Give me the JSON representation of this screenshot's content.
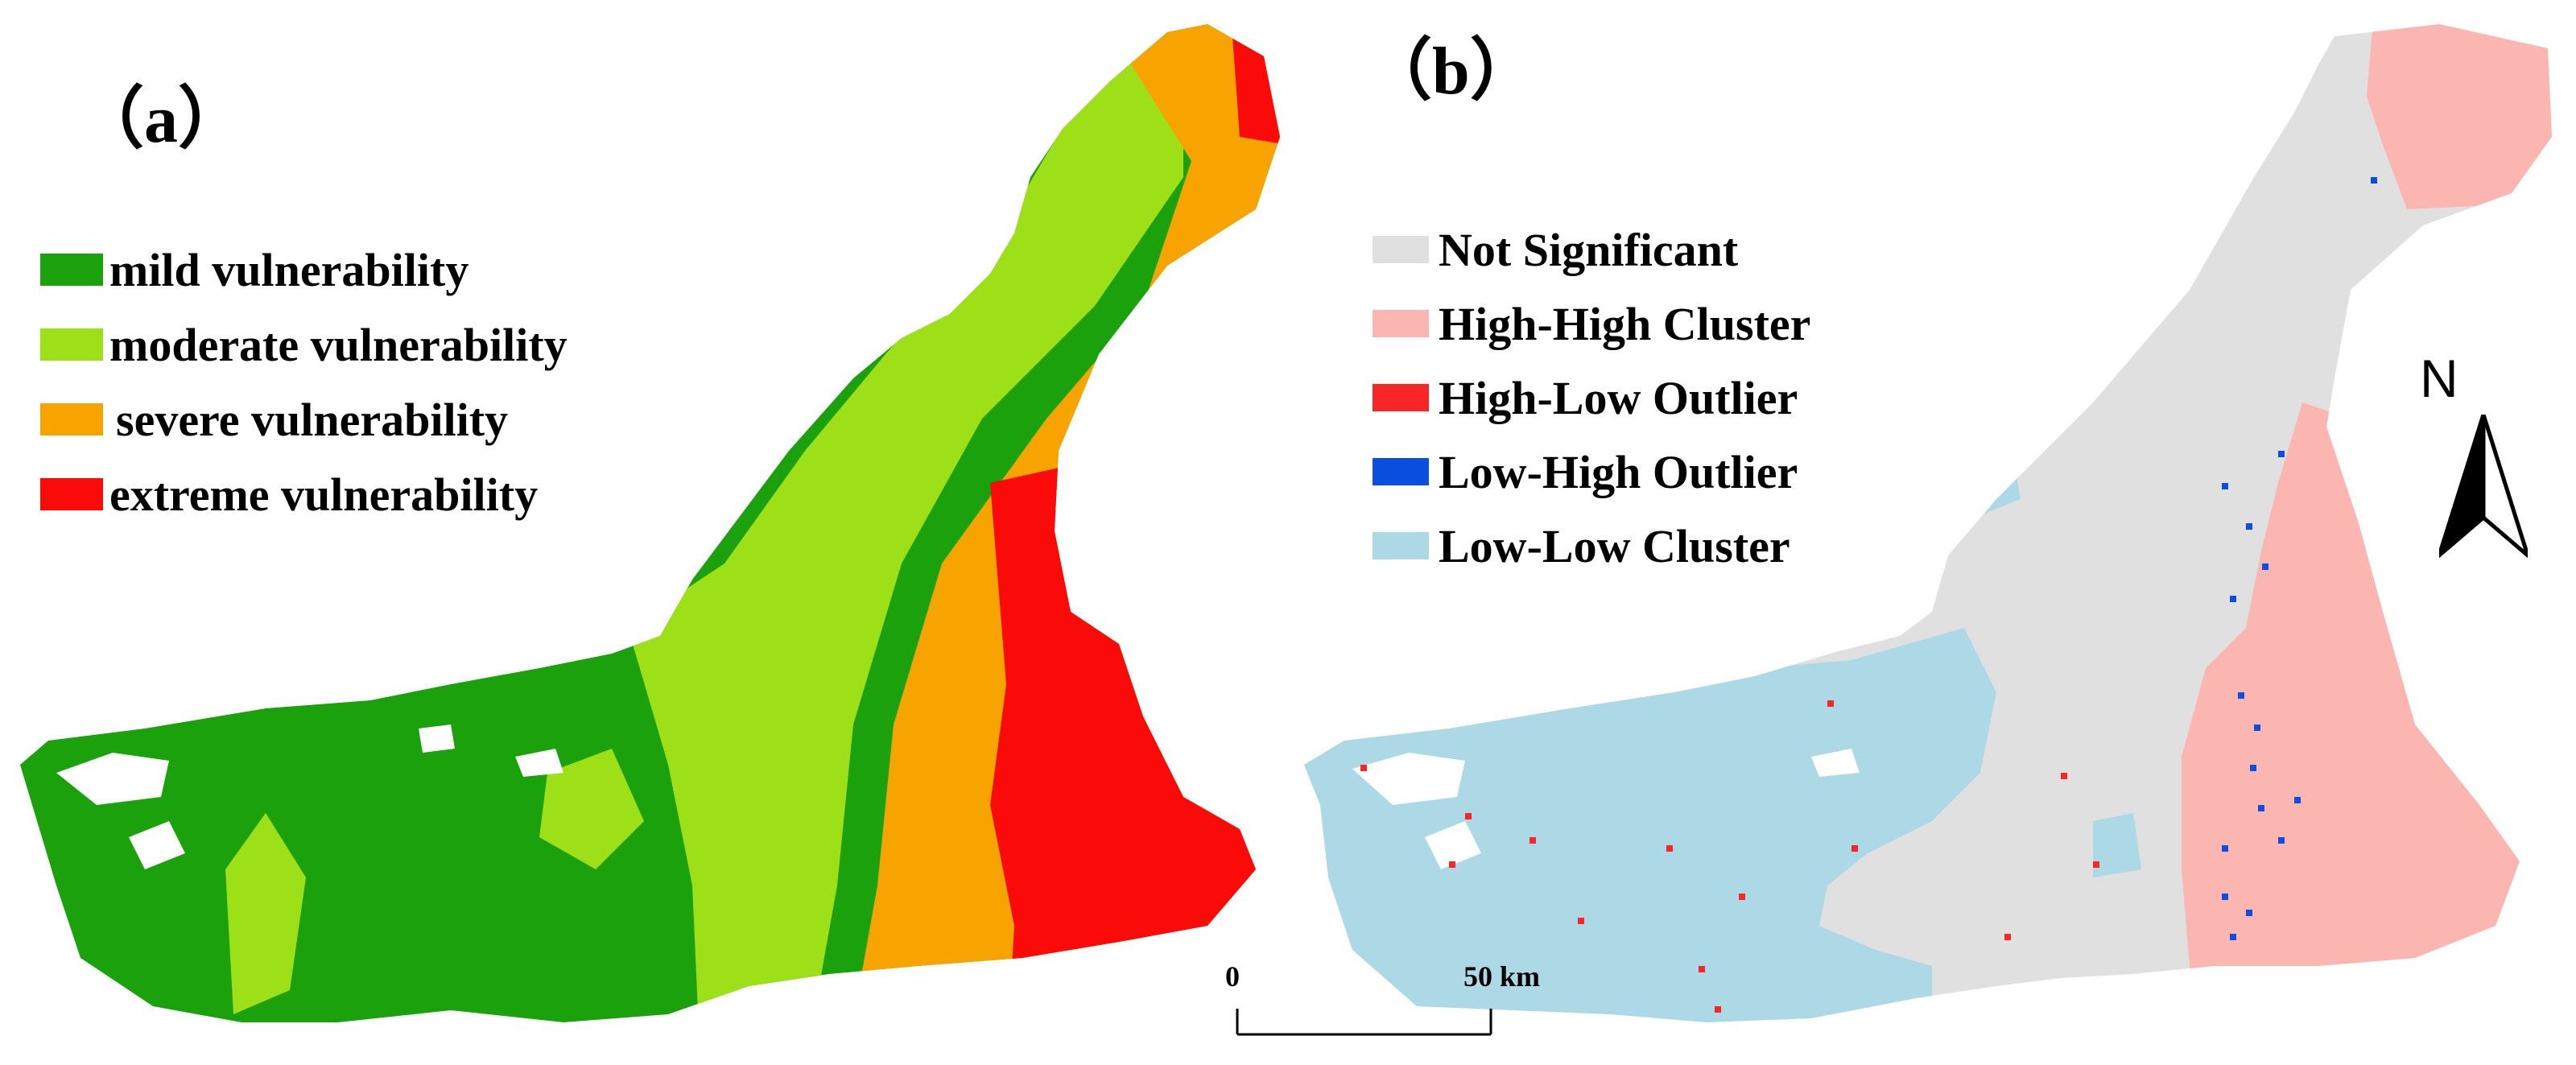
{
  "panel_a": {
    "label": "（a）",
    "legend": [
      {
        "label": "mild vulnerability",
        "color": "#1aa10c"
      },
      {
        "label": "moderate vulnerability",
        "color": "#9ee018"
      },
      {
        "label": "severe vulnerability",
        "color": "#f8a400"
      },
      {
        "label": "extreme vulnerability",
        "color": "#fb0a0a"
      }
    ]
  },
  "panel_b": {
    "label": "（b）",
    "legend": [
      {
        "label": "Not Significant",
        "color": "#e0e0e0"
      },
      {
        "label": "High-High Cluster",
        "color": "#fcb6b2"
      },
      {
        "label": "High-Low Outlier",
        "color": "#f82626"
      },
      {
        "label": "Low-High Outlier",
        "color": "#0a4fe0"
      },
      {
        "label": "Low-Low Cluster",
        "color": "#add8e6"
      }
    ]
  },
  "scale_bar": {
    "start": "0",
    "end": "50 km"
  },
  "north_arrow": {
    "letter": "N",
    "icon": "north-arrow-icon"
  }
}
